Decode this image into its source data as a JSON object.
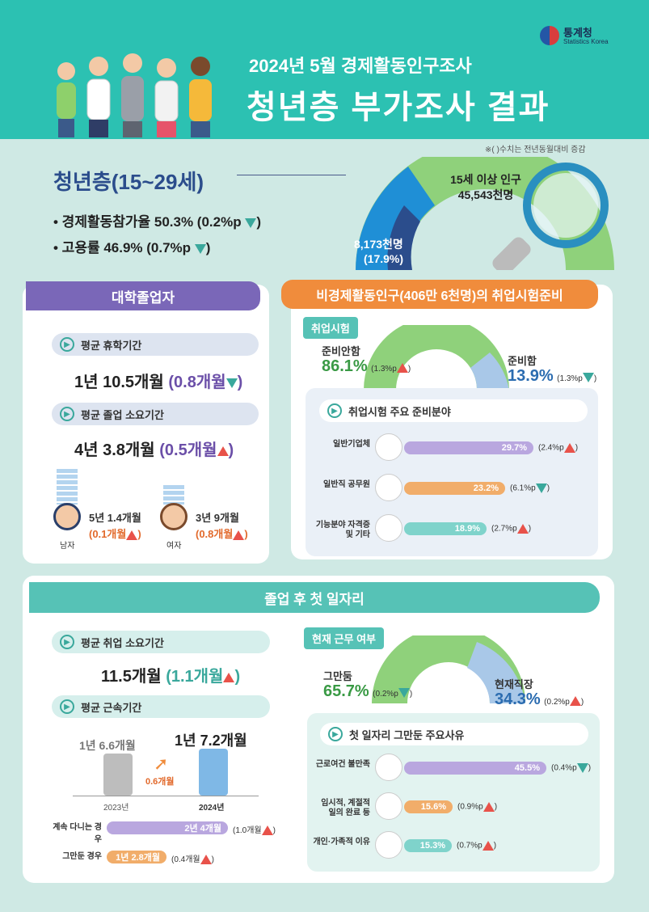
{
  "header": {
    "logo_name": "통계청",
    "logo_sub": "Statistics Korea",
    "subtitle": "2024년 5월 경제활동인구조사",
    "title": "청년층 부가조사 결과",
    "note": "※( )수치는 전년동월대비 증감"
  },
  "youth": {
    "title": "청년층(15~29세)",
    "participation": "• 경제활동참가율 50.3% (0.2%p",
    "employment": "• 고용률 46.9% (0.7%p",
    "pop_label": "15세 이상 인구",
    "pop_value": "45,543천명",
    "youth_value": "8,173천명",
    "youth_share": "(17.9%)"
  },
  "college": {
    "ribbon": "대학졸업자",
    "leave_title": "평균 휴학기간",
    "leave_value": "1년 10.5개월",
    "leave_change": "(0.8개월",
    "grad_title": "평균 졸업 소요기간",
    "grad_value": "4년 3.8개월",
    "grad_change": "(0.5개월",
    "male_value": "5년 1.4개월",
    "male_change": "(0.1개월",
    "male_label": "남자",
    "female_value": "3년 9개월",
    "female_change": "(0.8개월",
    "female_label": "여자"
  },
  "exam": {
    "ribbon": "비경제활동인구(406만 6천명)의 취업시험준비",
    "tag": "취업시험",
    "not_prep_label": "준비안함",
    "not_prep_value": "86.1%",
    "not_prep_change": "(1.3%p",
    "prep_label": "준비함",
    "prep_value": "13.9%",
    "prep_change": "(1.3%p",
    "fields_title": "취업시험 주요 준비분야",
    "fields": [
      {
        "label": "일반기업체",
        "value": "29.7%",
        "change": "(2.4%p",
        "pct": 29.7,
        "color": "#b9a7df",
        "dir": "up"
      },
      {
        "label": "일반직 공무원",
        "value": "23.2%",
        "change": "(6.1%p",
        "pct": 23.2,
        "color": "#f1ad6a",
        "dir": "down"
      },
      {
        "label": "기능분야 자격증 및 기타",
        "value": "18.9%",
        "change": "(2.7%p",
        "pct": 18.9,
        "color": "#7fd3cb",
        "dir": "up"
      }
    ]
  },
  "firstjob": {
    "ribbon": "졸업 후 첫 일자리",
    "search_title": "평균 취업 소요기간",
    "search_value": "11.5개월",
    "search_change": "(1.1개월",
    "tenure_title": "평균 근속기간",
    "tenure_2023": "1년 6.6개월",
    "tenure_2024": "1년 7.2개월",
    "tenure_diff": "0.6개월",
    "year_2023": "2023년",
    "year_2024": "2024년",
    "cont_label": "계속 다니는 경우",
    "cont_value": "2년 4개월",
    "cont_change": "(1.0개월",
    "quit_label": "그만둔 경우",
    "quit_value": "1년 2.8개월",
    "quit_change": "(0.4개월",
    "status_tag": "현재 근무 여부",
    "quit_pct_label": "그만둠",
    "quit_pct_value": "65.7%",
    "quit_pct_change": "(0.2%p",
    "curr_label": "현재직장",
    "curr_value": "34.3%",
    "curr_change": "(0.2%p",
    "reasons_title": "첫 일자리 그만둔 주요사유",
    "reasons": [
      {
        "label": "근로여건 불만족",
        "value": "45.5%",
        "change": "(0.4%p",
        "pct": 45.5,
        "color": "#b9a7df",
        "dir": "down"
      },
      {
        "label": "임시적, 계절적 일의 완료 등",
        "value": "15.6%",
        "change": "(0.9%p",
        "pct": 15.6,
        "color": "#f1ad6a",
        "dir": "up"
      },
      {
        "label": "개인·가족적 이유",
        "value": "15.3%",
        "change": "(0.7%p",
        "pct": 15.3,
        "color": "#7fd3cb",
        "dir": "up"
      }
    ]
  },
  "colors": {
    "teal": "#2cc1b2",
    "purple": "#7a67b8",
    "orange": "#f08c3c",
    "mint": "#56c2b6"
  }
}
